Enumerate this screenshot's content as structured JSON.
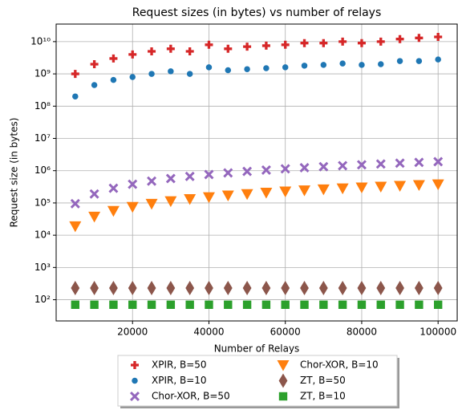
{
  "chart_data": {
    "type": "scatter",
    "title": "Request sizes (in bytes) vs number of relays",
    "xlabel": "Number of Relays",
    "ylabel": "Request size (in bytes)",
    "x": [
      5000,
      10000,
      15000,
      20000,
      25000,
      30000,
      35000,
      40000,
      45000,
      50000,
      55000,
      60000,
      65000,
      70000,
      75000,
      80000,
      85000,
      90000,
      95000,
      100000
    ],
    "series": [
      {
        "name": "XPIR, B=50",
        "color": "#d62728",
        "marker": "P",
        "values": [
          1000000000,
          2000000000,
          3000000000,
          4000000000,
          5000000000,
          6000000000,
          5000000000,
          8000000000,
          6000000000,
          7000000000,
          7500000000,
          8000000000,
          9000000000,
          9000000000,
          10000000000,
          9000000000,
          10000000000,
          12000000000,
          13000000000,
          14000000000
        ]
      },
      {
        "name": "XPIR, B=10",
        "color": "#1f77b4",
        "marker": "o",
        "values": [
          200000000,
          450000000,
          650000000,
          800000000,
          1000000000,
          1200000000,
          1000000000,
          1600000000,
          1300000000,
          1400000000,
          1500000000,
          1600000000,
          1800000000,
          1900000000,
          2100000000,
          1900000000,
          2000000000,
          2500000000,
          2500000000,
          2800000000
        ]
      },
      {
        "name": "Chor-XOR, B=50",
        "color": "#9467bd",
        "marker": "X",
        "values": [
          95000,
          190000,
          285000,
          380000,
          475000,
          570000,
          665000,
          760000,
          855000,
          950000,
          1045000,
          1140000,
          1235000,
          1330000,
          1425000,
          1520000,
          1615000,
          1710000,
          1805000,
          1900000
        ]
      },
      {
        "name": "Chor-XOR, B=10",
        "color": "#ff7f0e",
        "marker": "v",
        "values": [
          19000,
          38000,
          57000,
          76000,
          95000,
          114000,
          133000,
          152000,
          171000,
          190000,
          209000,
          228000,
          247000,
          266000,
          285000,
          304000,
          323000,
          342000,
          361000,
          380000
        ]
      },
      {
        "name": "ZT, B=50",
        "color": "#8c564b",
        "marker": "d",
        "values": [
          230,
          230,
          230,
          230,
          230,
          230,
          230,
          230,
          230,
          230,
          230,
          230,
          230,
          230,
          230,
          230,
          230,
          230,
          230,
          230
        ]
      },
      {
        "name": "ZT, B=10",
        "color": "#2ca02c",
        "marker": "s",
        "values": [
          70,
          70,
          70,
          70,
          70,
          70,
          70,
          70,
          70,
          70,
          70,
          70,
          70,
          70,
          70,
          70,
          70,
          70,
          70,
          70
        ]
      }
    ],
    "xlim": [
      0,
      105000
    ],
    "xticks": [
      20000,
      40000,
      60000,
      80000,
      100000
    ],
    "ylim": [
      22,
      35000000000
    ],
    "ylog": true,
    "yticks": [
      {
        "value": 100,
        "label": "10²"
      },
      {
        "value": 1000,
        "label": "10³"
      },
      {
        "value": 10000,
        "label": "10⁴"
      },
      {
        "value": 100000,
        "label": "10⁵"
      },
      {
        "value": 1000000,
        "label": "10⁶"
      },
      {
        "value": 10000000,
        "label": "10⁷"
      },
      {
        "value": 100000000,
        "label": "10⁸"
      },
      {
        "value": 1000000000,
        "label": "10⁹"
      },
      {
        "value": 10000000000,
        "label": "10¹⁰"
      }
    ],
    "grid": true,
    "legend": "below"
  }
}
